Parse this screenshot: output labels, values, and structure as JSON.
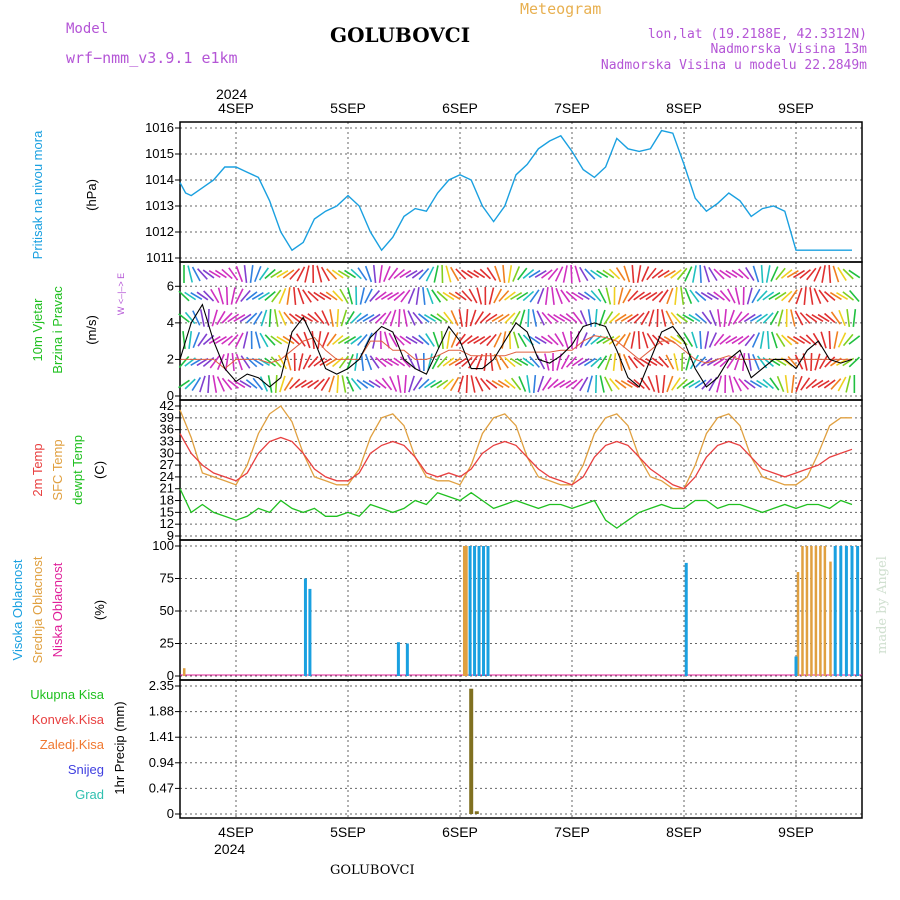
{
  "header": {
    "model_label": "Model",
    "model_name": "wrf−nmm_v3.9.1  e1km",
    "title": "GOLUBOVCI",
    "meteogram": "Meteogram",
    "lonlat": "lon,lat (19.2188E, 42.3312N)",
    "elev": "Nadmorska Visina 13m",
    "elev_model": "Nadmorska Visina u modelu 22.2849m",
    "year_top": "2024",
    "year_bottom": "2024",
    "footer_title": "GOLUBOVCI",
    "watermark": "made by Angel"
  },
  "colors": {
    "purple": "#b455d6",
    "gold": "#e8b050",
    "pressure": "#1aa0e0",
    "temp2m": "#e84040",
    "sfc": "#e0a040",
    "dew": "#20c020",
    "high": "#1aa0e0",
    "mid": "#e0a040",
    "low": "#e0209a",
    "precip_total": "#807020"
  },
  "chart_data": [
    {
      "type": "line",
      "panel": "pressure",
      "y_title": "Pritisak na nivou mora",
      "unit": "(hPa)",
      "x_days": [
        "4SEP",
        "5SEP",
        "6SEP",
        "7SEP",
        "8SEP",
        "9SEP"
      ],
      "ylim": [
        1011,
        1016
      ],
      "yticks": [
        "1011",
        "1012",
        "1013",
        "1014",
        "1015",
        "1016"
      ],
      "x": [
        -0.5,
        -0.45,
        -0.4,
        -0.3,
        -0.2,
        -0.1,
        0,
        0.1,
        0.2,
        0.3,
        0.4,
        0.5,
        0.6,
        0.7,
        0.8,
        0.9,
        1,
        1.1,
        1.2,
        1.3,
        1.4,
        1.5,
        1.6,
        1.7,
        1.8,
        1.9,
        2,
        2.1,
        2.2,
        2.3,
        2.4,
        2.5,
        2.6,
        2.7,
        2.8,
        2.9,
        3,
        3.1,
        3.2,
        3.3,
        3.4,
        3.5,
        3.6,
        3.7,
        3.8,
        3.9,
        4,
        4.1,
        4.2,
        4.3,
        4.4,
        4.5,
        4.6,
        4.7,
        4.8,
        4.9,
        5,
        5.1,
        5.2,
        5.3,
        5.4,
        5.5
      ],
      "values": [
        1013.9,
        1013.5,
        1013.4,
        1013.7,
        1014.0,
        1014.5,
        1014.5,
        1014.3,
        1014.1,
        1013.2,
        1012.0,
        1011.3,
        1011.6,
        1012.5,
        1012.8,
        1013.0,
        1013.4,
        1013.0,
        1012.0,
        1011.3,
        1011.8,
        1012.6,
        1012.9,
        1012.8,
        1013.5,
        1014.0,
        1014.2,
        1014.0,
        1013.0,
        1012.4,
        1013.0,
        1014.2,
        1014.6,
        1015.2,
        1015.5,
        1015.7,
        1015.1,
        1014.4,
        1014.1,
        1014.5,
        1015.6,
        1015.2,
        1015.1,
        1015.2,
        1015.9,
        1015.8,
        1014.6,
        1013.3,
        1012.8,
        1013.1,
        1013.5,
        1013.2,
        1012.6,
        1012.9,
        1013.0,
        1012.8,
        1011.3,
        1011.3,
        1011.3,
        1011.3,
        1011.3,
        1011.3
      ]
    },
    {
      "type": "line",
      "panel": "wind",
      "y_title_1": "10m Vjetar",
      "y_title_2": "Brzina i Pravac",
      "unit": "(m/s)",
      "legend_compass": "W <–|–> E",
      "ylim": [
        0,
        7
      ],
      "yticks": [
        "0",
        "2",
        "4",
        "6"
      ],
      "series": [
        {
          "name": "speed",
          "x": [
            -0.5,
            -0.4,
            -0.3,
            -0.2,
            -0.1,
            0,
            0.1,
            0.2,
            0.3,
            0.4,
            0.5,
            0.6,
            0.7,
            0.8,
            0.9,
            1,
            1.1,
            1.2,
            1.3,
            1.4,
            1.5,
            1.6,
            1.7,
            1.8,
            1.9,
            2,
            2.1,
            2.2,
            2.3,
            2.4,
            2.5,
            2.6,
            2.7,
            2.8,
            2.9,
            3,
            3.1,
            3.2,
            3.3,
            3.4,
            3.5,
            3.6,
            3.7,
            3.8,
            3.9,
            4,
            4.1,
            4.2,
            4.3,
            4.4,
            4.5,
            4.6,
            4.7,
            4.8,
            4.9,
            5,
            5.1,
            5.2,
            5.3,
            5.4,
            5.5
          ],
          "values": [
            2.0,
            4.0,
            5.0,
            3.0,
            1.5,
            0.8,
            1.2,
            1.0,
            0.5,
            1.0,
            3.5,
            4.3,
            3.0,
            1.5,
            1.2,
            1.5,
            2.0,
            3.2,
            3.8,
            3.5,
            2.0,
            1.5,
            1.2,
            2.5,
            3.8,
            3.0,
            1.5,
            1.5,
            2.0,
            3.0,
            4.0,
            3.5,
            2.0,
            1.8,
            2.2,
            2.8,
            3.8,
            4.0,
            3.8,
            2.5,
            1.0,
            0.5,
            2.0,
            3.5,
            3.8,
            3.0,
            1.5,
            0.5,
            1.0,
            2.0,
            2.5,
            1.0,
            1.5,
            2.0,
            2.0,
            1.5,
            2.5,
            3.0,
            2.0,
            1.8,
            2.0
          ]
        },
        {
          "name": "gust",
          "x": [
            -0.5,
            -0.4,
            -0.3,
            -0.2,
            -0.1,
            0,
            0.1,
            0.2,
            0.3,
            0.4,
            0.5,
            0.6,
            0.7,
            0.8,
            0.9,
            1,
            1.1,
            1.2,
            1.3,
            1.4,
            1.5,
            1.6,
            1.7,
            1.8,
            1.9,
            2,
            2.1,
            2.2,
            2.3,
            2.4,
            2.5,
            2.6,
            2.7,
            2.8,
            2.9,
            3,
            3.1,
            3.2,
            3.3,
            3.4,
            3.5,
            3.6,
            3.7,
            3.8,
            3.9,
            4,
            4.1,
            4.2,
            4.3,
            4.4,
            4.5,
            4.6,
            4.7,
            4.8,
            4.9,
            5,
            5.1,
            5.2,
            5.3,
            5.4,
            5.5
          ],
          "values": [
            2.0,
            2.0,
            2.0,
            2.0,
            1.5,
            2.0,
            2.0,
            2.0,
            1.8,
            2.0,
            2.5,
            3.0,
            3.2,
            2.5,
            2.0,
            2.0,
            2.0,
            3.0,
            3.0,
            2.5,
            2.5,
            2.0,
            2.0,
            2.2,
            2.5,
            2.5,
            2.2,
            2.2,
            2.2,
            2.2,
            2.4,
            2.4,
            2.4,
            2.4,
            2.5,
            2.5,
            3.0,
            3.3,
            3.2,
            3.0,
            2.5,
            2.0,
            2.5,
            3.0,
            3.0,
            2.5,
            2.0,
            1.8,
            2.0,
            2.2,
            2.0,
            2.0,
            2.0,
            2.0,
            2.0,
            2.0,
            2.0,
            2.0,
            2.0,
            2.0,
            2.0
          ]
        }
      ]
    },
    {
      "type": "line",
      "panel": "temperature",
      "y_title_1": "2m Temp",
      "y_title_2": "SFC Temp",
      "y_title_3": "dewpt Temp",
      "unit": "(C)",
      "ylim": [
        9,
        42
      ],
      "yticks": [
        "9",
        "12",
        "15",
        "18",
        "21",
        "24",
        "27",
        "30",
        "33",
        "36",
        "39",
        "42"
      ],
      "series": [
        {
          "name": "2m Temp",
          "x": [
            -0.5,
            -0.4,
            -0.3,
            -0.2,
            -0.1,
            0,
            0.1,
            0.2,
            0.3,
            0.4,
            0.5,
            0.6,
            0.7,
            0.8,
            0.9,
            1,
            1.1,
            1.2,
            1.3,
            1.4,
            1.5,
            1.6,
            1.7,
            1.8,
            1.9,
            2,
            2.1,
            2.2,
            2.3,
            2.4,
            2.5,
            2.6,
            2.7,
            2.8,
            2.9,
            3,
            3.1,
            3.2,
            3.3,
            3.4,
            3.5,
            3.6,
            3.7,
            3.8,
            3.9,
            4,
            4.1,
            4.2,
            4.3,
            4.4,
            4.5,
            4.6,
            4.7,
            4.8,
            4.9,
            5,
            5.1,
            5.2,
            5.3,
            5.4,
            5.5
          ],
          "values": [
            35,
            30,
            27,
            25,
            24,
            23,
            25,
            30,
            33,
            34,
            33,
            30,
            26,
            24,
            23,
            23,
            25,
            30,
            32,
            33,
            32,
            29,
            25,
            24,
            25,
            24,
            26,
            30,
            32,
            33,
            32,
            29,
            26,
            24,
            23,
            22,
            24,
            29,
            32,
            33,
            32,
            29,
            26,
            24,
            22,
            21,
            24,
            29,
            32,
            33,
            32,
            29,
            26,
            25,
            24,
            25,
            26,
            27,
            29,
            30,
            31
          ]
        },
        {
          "name": "SFC Temp",
          "x": [
            -0.5,
            -0.4,
            -0.3,
            -0.2,
            -0.1,
            0,
            0.1,
            0.2,
            0.3,
            0.4,
            0.5,
            0.6,
            0.7,
            0.8,
            0.9,
            1,
            1.1,
            1.2,
            1.3,
            1.4,
            1.5,
            1.6,
            1.7,
            1.8,
            1.9,
            2,
            2.1,
            2.2,
            2.3,
            2.4,
            2.5,
            2.6,
            2.7,
            2.8,
            2.9,
            3,
            3.1,
            3.2,
            3.3,
            3.4,
            3.5,
            3.6,
            3.7,
            3.8,
            3.9,
            4,
            4.1,
            4.2,
            4.3,
            4.4,
            4.5,
            4.6,
            4.7,
            4.8,
            4.9,
            5,
            5.1,
            5.2,
            5.3,
            5.4,
            5.5
          ],
          "values": [
            41,
            34,
            25,
            24,
            23,
            22,
            27,
            35,
            40,
            42,
            38,
            30,
            24,
            23,
            22,
            22,
            26,
            34,
            39,
            40,
            37,
            29,
            24,
            23,
            23,
            22,
            27,
            35,
            39,
            40,
            37,
            29,
            24,
            23,
            22,
            22,
            27,
            35,
            39,
            40,
            37,
            29,
            24,
            23,
            21,
            21,
            27,
            35,
            39,
            40,
            37,
            29,
            24,
            23,
            22,
            22,
            24,
            30,
            37,
            39,
            39
          ]
        },
        {
          "name": "dewpt Temp",
          "x": [
            -0.5,
            -0.4,
            -0.3,
            -0.2,
            -0.1,
            0,
            0.1,
            0.2,
            0.3,
            0.4,
            0.5,
            0.6,
            0.7,
            0.8,
            0.9,
            1,
            1.1,
            1.2,
            1.3,
            1.4,
            1.5,
            1.6,
            1.7,
            1.8,
            1.9,
            2,
            2.1,
            2.2,
            2.3,
            2.4,
            2.5,
            2.6,
            2.7,
            2.8,
            2.9,
            3,
            3.1,
            3.2,
            3.3,
            3.4,
            3.5,
            3.6,
            3.7,
            3.8,
            3.9,
            4,
            4.1,
            4.2,
            4.3,
            4.4,
            4.5,
            4.6,
            4.7,
            4.8,
            4.9,
            5,
            5.1,
            5.2,
            5.3,
            5.4,
            5.5
          ],
          "values": [
            21,
            15,
            17,
            15,
            14,
            13,
            14,
            16,
            15,
            18,
            16,
            15,
            16,
            14,
            14,
            15,
            14,
            17,
            16,
            15,
            16,
            18,
            17,
            20,
            19,
            18,
            20,
            18,
            16,
            17,
            18,
            17,
            16,
            17,
            17,
            16,
            17,
            18,
            13,
            11,
            13,
            15,
            16,
            17,
            16,
            16,
            18,
            18,
            16,
            17,
            17,
            16,
            15,
            16,
            17,
            16,
            17,
            17,
            16,
            18,
            17
          ]
        }
      ]
    },
    {
      "type": "bar",
      "panel": "clouds",
      "y_title_1": "Visoka Oblacnost",
      "y_title_2": "Srednja Oblacnost",
      "y_title_3": "Niska Oblacnost",
      "unit": "(%)",
      "ylim": [
        0,
        100
      ],
      "yticks": [
        "0",
        "25",
        "50",
        "75",
        "100"
      ],
      "series": [
        {
          "name": "Visoka Oblacnost",
          "x": [
            0.62,
            0.66,
            1.45,
            1.53,
            2.09,
            2.13,
            2.17,
            2.21,
            2.25,
            4.02,
            5.0,
            5.35,
            5.4,
            5.45,
            5.5,
            5.55
          ],
          "values": [
            75,
            67,
            26,
            25,
            100,
            100,
            100,
            100,
            100,
            87,
            15,
            100,
            100,
            100,
            100,
            100
          ]
        },
        {
          "name": "Srednja Oblacnost",
          "x": [
            -0.46,
            2.04,
            2.06,
            5.02,
            5.06,
            5.1,
            5.14,
            5.18,
            5.22,
            5.26,
            5.31
          ],
          "values": [
            6,
            100,
            100,
            80,
            100,
            100,
            100,
            100,
            100,
            100,
            88
          ]
        }
      ]
    },
    {
      "type": "bar",
      "panel": "precip",
      "y_title": "1hr Precip (mm)",
      "legend": [
        "Ukupna Kisa",
        "Konvek.Kisa",
        "Zaledj.Kisa",
        "Snijeg",
        "Grad"
      ],
      "ylim": [
        0,
        2.35
      ],
      "yticks": [
        "0",
        "0.47",
        "0.94",
        "1.41",
        "1.88",
        "2.35"
      ],
      "x": [
        2.1,
        2.15
      ],
      "values": [
        2.3,
        0.05
      ]
    }
  ]
}
